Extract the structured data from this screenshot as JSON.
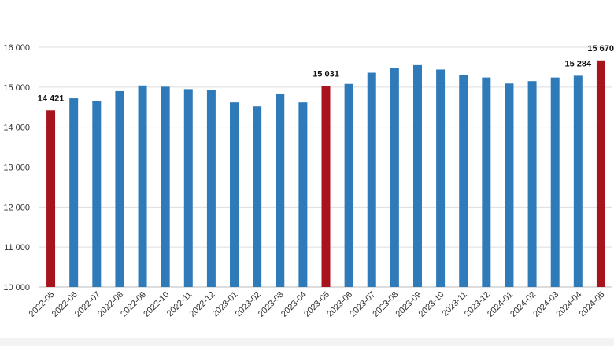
{
  "colors": {
    "bar": "#2f7ab8",
    "highlight": "#a8141c",
    "gridline": "#dddddd",
    "axis": "#bbbbbb"
  },
  "chart_data": {
    "type": "bar",
    "title": "",
    "xlabel": "",
    "ylabel": "",
    "ylim": [
      10000,
      16000
    ],
    "yticks": [
      10000,
      11000,
      12000,
      13000,
      14000,
      15000,
      16000
    ],
    "ytick_labels": [
      "10 000",
      "11 000",
      "12 000",
      "13 000",
      "14 000",
      "15 000",
      "16 000"
    ],
    "grid": true,
    "legend": "none",
    "categories": [
      "2022-05",
      "2022-06",
      "2022-07",
      "2022-08",
      "2022-09",
      "2022-10",
      "2022-11",
      "2022-12",
      "2023-01",
      "2023-02",
      "2023-03",
      "2023-04",
      "2023-05",
      "2023-06",
      "2023-07",
      "2023-08",
      "2023-09",
      "2023-10",
      "2023-11",
      "2023-12",
      "2024-01",
      "2024-02",
      "2024-03",
      "2024-04",
      "2024-05"
    ],
    "values": [
      14421,
      14720,
      14650,
      14900,
      15040,
      15010,
      14950,
      14920,
      14620,
      14520,
      14840,
      14620,
      15031,
      15080,
      15360,
      15480,
      15550,
      15440,
      15300,
      15240,
      15090,
      15150,
      15240,
      15284,
      15670
    ],
    "highlighted": [
      0,
      12,
      24
    ],
    "data_labels": [
      {
        "index": 0,
        "text": "14 421"
      },
      {
        "index": 12,
        "text": "15 031"
      },
      {
        "index": 23,
        "text": "15 284"
      },
      {
        "index": 24,
        "text": "15 670"
      }
    ]
  }
}
